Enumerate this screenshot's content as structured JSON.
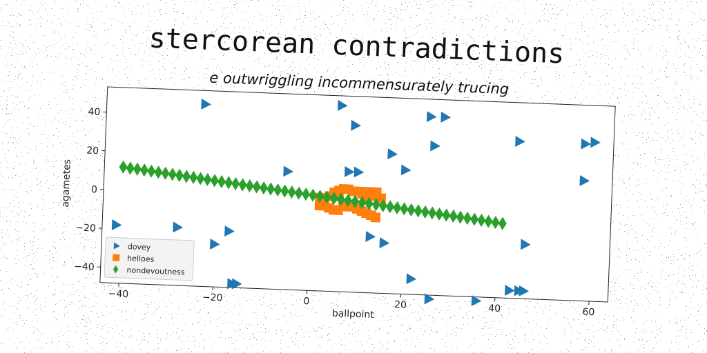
{
  "chart_data": {
    "type": "scatter",
    "title": "stercorean contradictions",
    "subtitle": "e outwriggling incommensurately trucing",
    "xlabel": "ballpoint",
    "ylabel": "agametes",
    "xlim": [
      -44,
      64
    ],
    "ylim": [
      -48,
      53
    ],
    "xticks": [
      -40,
      -20,
      0,
      20,
      40,
      60
    ],
    "yticks": [
      -40,
      -20,
      0,
      20,
      40
    ],
    "grid": false,
    "legend_position": "lower-left",
    "series": [
      {
        "name": "dovey",
        "marker": "triangle-right",
        "color": "#1f77b4",
        "points": [
          [
            -23,
            46
          ],
          [
            6,
            48
          ],
          [
            9,
            38
          ],
          [
            25,
            44
          ],
          [
            28,
            44
          ],
          [
            26,
            29
          ],
          [
            17,
            24
          ],
          [
            44,
            33
          ],
          [
            58,
            33
          ],
          [
            60,
            34
          ],
          [
            58,
            14
          ],
          [
            -5,
            13
          ],
          [
            8,
            14
          ],
          [
            10,
            14
          ],
          [
            20,
            16
          ],
          [
            -41,
            -18
          ],
          [
            -28,
            -18
          ],
          [
            -17,
            -19
          ],
          [
            -20,
            -26
          ],
          [
            13,
            -19
          ],
          [
            16,
            -22
          ],
          [
            46,
            -20
          ],
          [
            22,
            -40
          ],
          [
            26,
            -50
          ],
          [
            36,
            -50
          ],
          [
            43,
            -44
          ],
          [
            45,
            -44
          ],
          [
            46,
            -44
          ],
          [
            -16,
            -46
          ],
          [
            -15,
            -46
          ]
        ]
      },
      {
        "name": "helloes",
        "marker": "square",
        "color": "#ff7f0e",
        "points": [
          [
            2,
            0
          ],
          [
            3,
            0
          ],
          [
            4,
            1
          ],
          [
            5,
            3
          ],
          [
            6,
            4
          ],
          [
            7,
            5
          ],
          [
            8,
            5
          ],
          [
            9,
            4
          ],
          [
            10,
            4
          ],
          [
            11,
            3
          ],
          [
            12,
            4
          ],
          [
            13,
            4
          ],
          [
            14,
            4
          ],
          [
            3,
            -4
          ],
          [
            4,
            -5
          ],
          [
            5,
            -6
          ],
          [
            6,
            -6
          ],
          [
            7,
            -4
          ],
          [
            8,
            -3
          ],
          [
            9,
            -4
          ],
          [
            10,
            -5
          ],
          [
            11,
            -6
          ],
          [
            12,
            -7
          ],
          [
            13,
            -8
          ],
          [
            14,
            -9
          ],
          [
            2,
            -4
          ],
          [
            15,
            1
          ],
          [
            14,
            2
          ],
          [
            12,
            0
          ],
          [
            6,
            1
          ]
        ]
      },
      {
        "name": "nondevoutness",
        "marker": "diamond",
        "color": "#2ca02c",
        "points": [
          [
            -40,
            12
          ],
          [
            -38.5,
            11.5
          ],
          [
            -37,
            11.2
          ],
          [
            -35.5,
            10.8
          ],
          [
            -34,
            10.4
          ],
          [
            -32.5,
            10
          ],
          [
            -31,
            9.6
          ],
          [
            -29.5,
            9.2
          ],
          [
            -28,
            8.8
          ],
          [
            -26.5,
            8.4
          ],
          [
            -25,
            8
          ],
          [
            -23.5,
            7.6
          ],
          [
            -22,
            7.2
          ],
          [
            -20.5,
            6.8
          ],
          [
            -19,
            6.4
          ],
          [
            -17.5,
            6
          ],
          [
            -16,
            5.6
          ],
          [
            -14.5,
            5.2
          ],
          [
            -13,
            4.8
          ],
          [
            -11.5,
            4.4
          ],
          [
            -10,
            4
          ],
          [
            -8.5,
            3.6
          ],
          [
            -7,
            3.2
          ],
          [
            -5.5,
            2.8
          ],
          [
            -4,
            2.4
          ],
          [
            -2.5,
            2
          ],
          [
            -1,
            1.6
          ],
          [
            0.5,
            1.2
          ],
          [
            2,
            0.8
          ],
          [
            3.5,
            0.4
          ],
          [
            5,
            0
          ],
          [
            6.5,
            -0.4
          ],
          [
            8,
            -0.8
          ],
          [
            9.5,
            -1.2
          ],
          [
            11,
            -1.6
          ],
          [
            12.5,
            -2
          ],
          [
            14,
            -2.4
          ],
          [
            15.5,
            -2.8
          ],
          [
            17,
            -3.2
          ],
          [
            18.5,
            -3.6
          ],
          [
            20,
            -4
          ],
          [
            21.5,
            -4.4
          ],
          [
            23,
            -4.8
          ],
          [
            24.5,
            -5.2
          ],
          [
            26,
            -5.6
          ],
          [
            27.5,
            -6
          ],
          [
            29,
            -6.4
          ],
          [
            30.5,
            -6.8
          ],
          [
            32,
            -7.2
          ],
          [
            33.5,
            -7.6
          ],
          [
            35,
            -8
          ],
          [
            36.5,
            -8.4
          ],
          [
            38,
            -8.8
          ],
          [
            39.5,
            -9.2
          ],
          [
            41,
            -9.6
          ]
        ]
      }
    ]
  }
}
